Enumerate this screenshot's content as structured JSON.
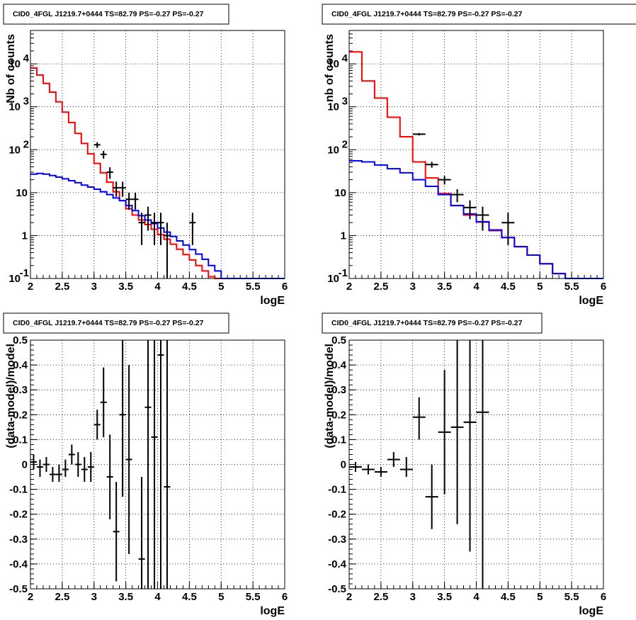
{
  "chart_data": [
    {
      "type": "line",
      "title": "CID0_4FGL J1219.7+0444 TS=82.79 PS=-0.27 PS=-0.27",
      "xlabel": "logE",
      "ylabel": "Nb of counts",
      "xlim": [
        2,
        6
      ],
      "ylim": [
        0.1,
        60000
      ],
      "yscale": "log",
      "grid": true,
      "x_ticks": [
        "2",
        "2.5",
        "3",
        "3.5",
        "4",
        "4.5",
        "5",
        "5.5",
        "6"
      ],
      "y_ticks": [
        {
          "value": 0.1,
          "base": "10",
          "exp": "-1"
        },
        {
          "value": 1,
          "base": "1",
          "exp": ""
        },
        {
          "value": 10,
          "base": "10",
          "exp": ""
        },
        {
          "value": 100,
          "base": "10",
          "exp": "2"
        },
        {
          "value": 1000,
          "base": "10",
          "exp": "3"
        },
        {
          "value": 10000,
          "base": "10",
          "exp": "4"
        }
      ],
      "bin_edges": [
        2.0,
        2.1,
        2.2,
        2.3,
        2.4,
        2.5,
        2.6,
        2.7,
        2.8,
        2.9,
        3.0,
        3.1,
        3.2,
        3.3,
        3.4,
        3.5,
        3.6,
        3.7,
        3.8,
        3.9,
        4.0,
        4.1,
        4.2,
        4.3,
        4.4,
        4.5,
        4.6,
        4.7,
        4.8,
        4.9,
        5.0,
        5.1,
        5.2,
        5.3,
        5.4,
        5.5,
        5.6,
        5.7,
        5.8,
        5.9,
        6.0
      ],
      "series": [
        {
          "color": "#ff0000",
          "kind": "hist",
          "values": [
            8000,
            5500,
            3500,
            2200,
            1300,
            750,
            430,
            240,
            140,
            80,
            48,
            29,
            17.5,
            10.5,
            6.5,
            4.2,
            3.0,
            2.3,
            1.8,
            1.4,
            1.05,
            0.82,
            0.63,
            0.48,
            0.36,
            0.27,
            0.2,
            0.15,
            0.11,
            0.09,
            0.08,
            0.08,
            0.08,
            0.08,
            0.08,
            0.08,
            0.08,
            0.08,
            0.08,
            0.08
          ]
        },
        {
          "color": "#0000ff",
          "kind": "hist",
          "values": [
            27,
            28,
            27,
            25,
            23,
            21,
            19,
            17,
            15,
            13.5,
            12,
            10.5,
            9,
            7.5,
            6.5,
            5,
            3.8,
            2.9,
            2.3,
            1.9,
            1.5,
            1.2,
            0.95,
            0.75,
            0.6,
            0.47,
            0.37,
            0.28,
            0.2,
            0.15,
            0.1,
            0.1,
            0.1,
            0.1,
            0.1,
            0.1,
            0.1,
            0.1,
            0.1,
            0.1
          ]
        },
        {
          "color": "#000000",
          "kind": "points",
          "points": [
            {
              "x": 3.05,
              "y": 130,
              "ylo": 110,
              "yhi": 150
            },
            {
              "x": 3.15,
              "y": 78,
              "ylo": 62,
              "yhi": 94
            },
            {
              "x": 3.25,
              "y": 30,
              "ylo": 21,
              "yhi": 39
            },
            {
              "x": 3.35,
              "y": 13,
              "ylo": 8,
              "yhi": 18
            },
            {
              "x": 3.45,
              "y": 13,
              "ylo": 8,
              "yhi": 18
            },
            {
              "x": 3.55,
              "y": 7,
              "ylo": 4,
              "yhi": 10
            },
            {
              "x": 3.65,
              "y": 7,
              "ylo": 4,
              "yhi": 10
            },
            {
              "x": 3.75,
              "y": 2,
              "ylo": 0.6,
              "yhi": 3.4
            },
            {
              "x": 3.85,
              "y": 3,
              "ylo": 1.3,
              "yhi": 4.7
            },
            {
              "x": 3.95,
              "y": 2,
              "ylo": 0.6,
              "yhi": 3.4
            },
            {
              "x": 4.05,
              "y": 2,
              "ylo": 0.6,
              "yhi": 3.4
            },
            {
              "x": 4.15,
              "y": 1,
              "ylo": 0.1,
              "yhi": 2
            },
            {
              "x": 4.55,
              "y": 2,
              "ylo": 0.6,
              "yhi": 3.4
            }
          ]
        }
      ]
    },
    {
      "type": "line",
      "title": "CID0_4FGL J1219.7+0444 TS=82.79 PS=-0.27 PS=-0.27",
      "xlabel": "logE",
      "ylabel": "nb of counts",
      "xlim": [
        2,
        6
      ],
      "ylim": [
        0.1,
        60000
      ],
      "yscale": "log",
      "grid": true,
      "x_ticks": [
        "2",
        "2.5",
        "3",
        "3.5",
        "4",
        "4.5",
        "5",
        "5.5",
        "6"
      ],
      "y_ticks": [
        {
          "value": 0.1,
          "base": "10",
          "exp": "-1"
        },
        {
          "value": 1,
          "base": "1",
          "exp": ""
        },
        {
          "value": 10,
          "base": "10",
          "exp": ""
        },
        {
          "value": 100,
          "base": "10",
          "exp": "2"
        },
        {
          "value": 1000,
          "base": "10",
          "exp": "3"
        },
        {
          "value": 10000,
          "base": "10",
          "exp": "4"
        }
      ],
      "bin_edges": [
        2.0,
        2.2,
        2.4,
        2.6,
        2.8,
        3.0,
        3.2,
        3.4,
        3.6,
        3.8,
        4.0,
        4.2,
        4.4,
        4.6,
        4.8,
        5.0,
        5.2,
        5.4,
        5.6,
        5.8,
        6.0
      ],
      "series": [
        {
          "color": "#ff0000",
          "kind": "hist",
          "values": [
            19000,
            4000,
            1600,
            570,
            200,
            52,
            22,
            9.5,
            5,
            3,
            2.05,
            1.3,
            0.9,
            0.55,
            0.35,
            0.22,
            0.13,
            0.09,
            0.09,
            0.09
          ]
        },
        {
          "color": "#0000ff",
          "kind": "hist",
          "values": [
            55,
            52,
            44,
            36,
            29,
            20,
            14,
            9,
            5,
            3.2,
            2.1,
            1.35,
            0.9,
            0.55,
            0.35,
            0.22,
            0.13,
            0.1,
            0.1,
            0.1
          ]
        },
        {
          "color": "#000000",
          "kind": "points",
          "points": [
            {
              "x": 3.1,
              "y": 230,
              "ylo": 215,
              "yhi": 245
            },
            {
              "x": 3.3,
              "y": 45,
              "ylo": 38,
              "yhi": 52
            },
            {
              "x": 3.5,
              "y": 20,
              "ylo": 15.5,
              "yhi": 24.5
            },
            {
              "x": 3.7,
              "y": 9,
              "ylo": 6,
              "yhi": 12
            },
            {
              "x": 3.9,
              "y": 4.5,
              "ylo": 2.4,
              "yhi": 6.6
            },
            {
              "x": 4.1,
              "y": 3,
              "ylo": 1.3,
              "yhi": 4.7
            },
            {
              "x": 4.5,
              "y": 2,
              "ylo": 0.6,
              "yhi": 3.4
            }
          ]
        }
      ]
    },
    {
      "type": "scatter",
      "title": "CID0_4FGL J1219.7+0444 TS=82.79 PS=-0.27 PS=-0.27",
      "xlabel": "logE",
      "ylabel": "(data-model)/model",
      "xlim": [
        2,
        6
      ],
      "ylim": [
        -0.5,
        0.5
      ],
      "yscale": "linear",
      "grid": true,
      "x_ticks": [
        "2",
        "2.5",
        "3",
        "3.5",
        "4",
        "4.5",
        "5",
        "5.5",
        "6"
      ],
      "y_ticks": [
        "-0.5",
        "-0.4",
        "-0.3",
        "-0.2",
        "-0.1",
        "0",
        "0.1",
        "0.2",
        "0.3",
        "0.4",
        "0.5"
      ],
      "xerr": 0.05,
      "points": [
        {
          "x": 2.05,
          "y": 0.01,
          "ylo": -0.02,
          "yhi": 0.04
        },
        {
          "x": 2.15,
          "y": -0.01,
          "ylo": -0.05,
          "yhi": 0.02
        },
        {
          "x": 2.25,
          "y": 0.0,
          "ylo": -0.03,
          "yhi": 0.03
        },
        {
          "x": 2.35,
          "y": -0.04,
          "ylo": -0.07,
          "yhi": -0.01
        },
        {
          "x": 2.45,
          "y": -0.04,
          "ylo": -0.07,
          "yhi": 0.0
        },
        {
          "x": 2.55,
          "y": -0.02,
          "ylo": -0.05,
          "yhi": 0.02
        },
        {
          "x": 2.65,
          "y": 0.04,
          "ylo": 0.0,
          "yhi": 0.08
        },
        {
          "x": 2.75,
          "y": 0.0,
          "ylo": -0.05,
          "yhi": 0.05
        },
        {
          "x": 2.85,
          "y": -0.02,
          "ylo": -0.07,
          "yhi": 0.03
        },
        {
          "x": 2.95,
          "y": -0.01,
          "ylo": -0.07,
          "yhi": 0.05
        },
        {
          "x": 3.05,
          "y": 0.16,
          "ylo": 0.1,
          "yhi": 0.22
        },
        {
          "x": 3.15,
          "y": 0.25,
          "ylo": 0.11,
          "yhi": 0.39
        },
        {
          "x": 3.25,
          "y": -0.05,
          "ylo": -0.22,
          "yhi": 0.12
        },
        {
          "x": 3.35,
          "y": -0.27,
          "ylo": -0.47,
          "yhi": -0.07
        },
        {
          "x": 3.45,
          "y": 0.2,
          "ylo": -0.13,
          "yhi": 0.5
        },
        {
          "x": 3.55,
          "y": 0.02,
          "ylo": -0.36,
          "yhi": 0.4
        },
        {
          "x": 3.75,
          "y": -0.38,
          "ylo": -0.5,
          "yhi": -0.05
        },
        {
          "x": 3.85,
          "y": 0.23,
          "ylo": -0.5,
          "yhi": 0.5
        },
        {
          "x": 3.95,
          "y": 0.11,
          "ylo": -0.5,
          "yhi": 0.5
        },
        {
          "x": 4.05,
          "y": 0.44,
          "ylo": -0.5,
          "yhi": 0.5
        },
        {
          "x": 4.15,
          "y": -0.09,
          "ylo": -0.5,
          "yhi": 0.5
        }
      ]
    },
    {
      "type": "scatter",
      "title": "CID0_4FGL J1219.7+0444 TS=82.79 PS=-0.27 PS=-0.27",
      "xlabel": "logE",
      "ylabel": "(data-model)/model",
      "xlim": [
        2,
        6
      ],
      "ylim": [
        -0.5,
        0.5
      ],
      "yscale": "linear",
      "grid": true,
      "x_ticks": [
        "2",
        "2.5",
        "3",
        "3.5",
        "4",
        "4.5",
        "5",
        "5.5",
        "6"
      ],
      "y_ticks": [
        "-0.5",
        "-0.4",
        "-0.3",
        "-0.2",
        "-0.1",
        "0",
        "0.1",
        "0.2",
        "0.3",
        "0.4",
        "0.5"
      ],
      "xerr": 0.1,
      "points": [
        {
          "x": 2.1,
          "y": -0.01,
          "ylo": -0.03,
          "yhi": 0.01
        },
        {
          "x": 2.3,
          "y": -0.02,
          "ylo": -0.04,
          "yhi": 0.0
        },
        {
          "x": 2.5,
          "y": -0.03,
          "ylo": -0.05,
          "yhi": -0.01
        },
        {
          "x": 2.7,
          "y": 0.02,
          "ylo": -0.01,
          "yhi": 0.05
        },
        {
          "x": 2.9,
          "y": -0.02,
          "ylo": -0.05,
          "yhi": 0.03
        },
        {
          "x": 3.1,
          "y": 0.19,
          "ylo": 0.1,
          "yhi": 0.27
        },
        {
          "x": 3.3,
          "y": -0.13,
          "ylo": -0.26,
          "yhi": 0.0
        },
        {
          "x": 3.5,
          "y": 0.13,
          "ylo": -0.12,
          "yhi": 0.38
        },
        {
          "x": 3.7,
          "y": 0.15,
          "ylo": -0.24,
          "yhi": 0.5
        },
        {
          "x": 3.9,
          "y": 0.17,
          "ylo": -0.35,
          "yhi": 0.5
        },
        {
          "x": 4.1,
          "y": 0.21,
          "ylo": -0.5,
          "yhi": 0.5
        }
      ]
    }
  ]
}
